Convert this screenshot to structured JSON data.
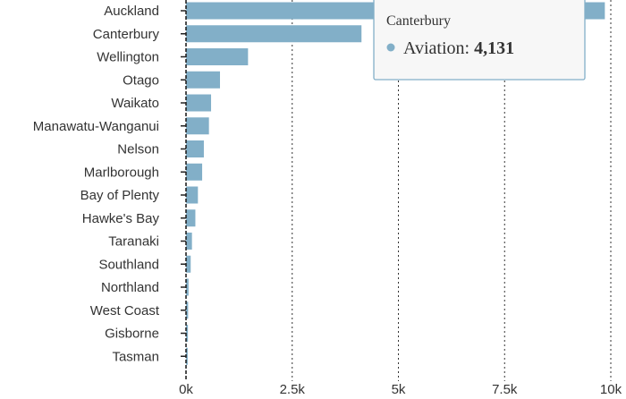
{
  "chart_data": {
    "type": "bar",
    "orientation": "horizontal",
    "categories": [
      "Auckland",
      "Canterbury",
      "Wellington",
      "Otago",
      "Waikato",
      "Manawatu-Wanganui",
      "Nelson",
      "Marlborough",
      "Bay of Plenty",
      "Hawke's Bay",
      "Taranaki",
      "Southland",
      "Northland",
      "West Coast",
      "Gisborne",
      "Tasman"
    ],
    "series": [
      {
        "values": [
          9860,
          4131,
          1460,
          800,
          590,
          540,
          420,
          380,
          280,
          220,
          140,
          110,
          60,
          50,
          45,
          40
        ]
      }
    ],
    "xlim": [
      0,
      10000
    ],
    "x_ticks": [
      0,
      2500,
      5000,
      7500,
      10000
    ],
    "x_tick_labels": [
      "0k",
      "2.5k",
      "5k",
      "7.5k",
      "10k"
    ],
    "grid": "vertical",
    "colors": {
      "bar": "#82afc8",
      "tooltip_border": "#82afc8",
      "tooltip_bg": "#f7f7f7"
    },
    "tooltip": {
      "category": "Canterbury",
      "series_label": "Aviation",
      "value_text": "4,131",
      "separator": ": "
    }
  }
}
